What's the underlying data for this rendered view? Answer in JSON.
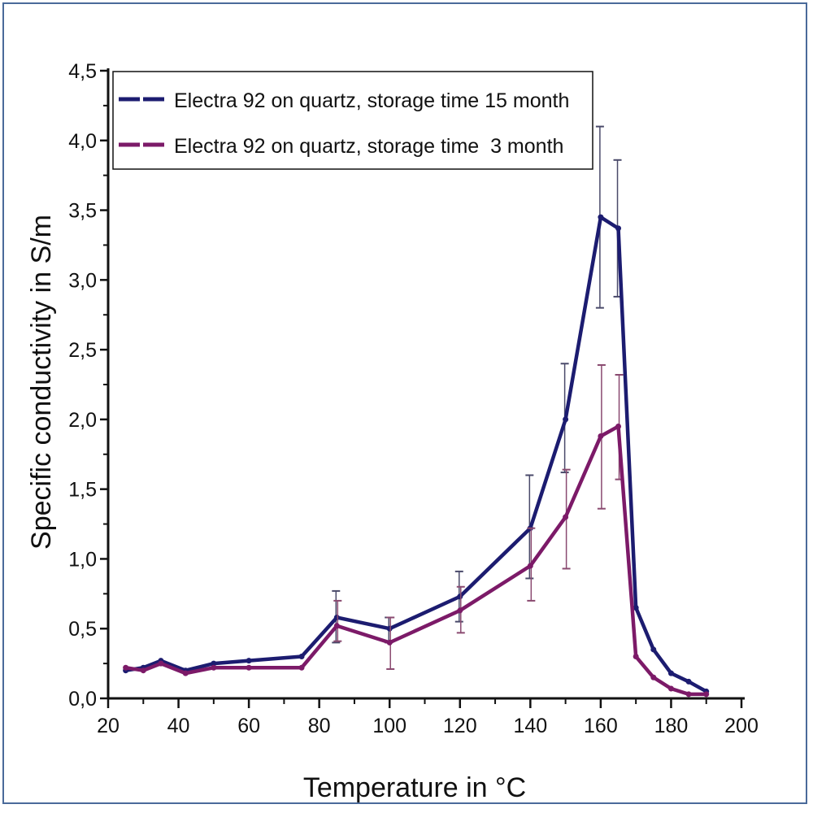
{
  "chart_data": {
    "type": "line",
    "xlabel": "Temperature in °C",
    "ylabel": "Specific conductivity in S/m",
    "xlim": [
      20,
      200
    ],
    "ylim": [
      0,
      4.5
    ],
    "xticks": [
      "20",
      "40",
      "60",
      "80",
      "100",
      "120",
      "140",
      "160",
      "180",
      "200"
    ],
    "yticks": [
      "0,0",
      "0,5",
      "1,0",
      "1,5",
      "2,0",
      "2,5",
      "3,0",
      "3,5",
      "4,0",
      "4,5"
    ],
    "legend_position": "top-left",
    "grid": false,
    "series": [
      {
        "name": "Electra 92 on quartz, storage time 15 month",
        "color": "#1c1c70",
        "x": [
          25,
          30,
          35,
          42,
          50,
          60,
          75,
          85,
          100,
          120,
          140,
          150,
          160,
          165,
          170,
          175,
          180,
          185,
          190
        ],
        "y": [
          0.2,
          0.22,
          0.27,
          0.2,
          0.25,
          0.27,
          0.3,
          0.58,
          0.5,
          0.73,
          1.22,
          2.0,
          3.45,
          3.37,
          0.65,
          0.35,
          0.18,
          0.12,
          0.05
        ],
        "error_bars": [
          {
            "x": 85,
            "low": 0.4,
            "high": 0.77
          },
          {
            "x": 100,
            "low": 0.4,
            "high": 0.58
          },
          {
            "x": 120,
            "low": 0.55,
            "high": 0.91
          },
          {
            "x": 140,
            "low": 0.86,
            "high": 1.6
          },
          {
            "x": 150,
            "low": 1.62,
            "high": 2.4
          },
          {
            "x": 160,
            "low": 2.8,
            "high": 4.1
          },
          {
            "x": 165,
            "low": 2.88,
            "high": 3.86
          }
        ]
      },
      {
        "name": "Electra 92 on quartz, storage time  3 month",
        "color": "#7c1a68",
        "x": [
          25,
          30,
          35,
          42,
          50,
          60,
          75,
          85,
          100,
          120,
          140,
          150,
          160,
          165,
          170,
          175,
          180,
          185,
          190
        ],
        "y": [
          0.22,
          0.2,
          0.25,
          0.18,
          0.22,
          0.22,
          0.22,
          0.52,
          0.4,
          0.63,
          0.95,
          1.3,
          1.88,
          1.95,
          0.3,
          0.15,
          0.07,
          0.03,
          0.03
        ],
        "error_bars": [
          {
            "x": 85,
            "low": 0.41,
            "high": 0.7
          },
          {
            "x": 100,
            "low": 0.21,
            "high": 0.58
          },
          {
            "x": 120,
            "low": 0.47,
            "high": 0.8
          },
          {
            "x": 140,
            "low": 0.7,
            "high": 1.22
          },
          {
            "x": 150,
            "low": 0.93,
            "high": 1.64
          },
          {
            "x": 160,
            "low": 1.36,
            "high": 2.39
          },
          {
            "x": 165,
            "low": 1.57,
            "high": 2.32
          }
        ]
      }
    ]
  }
}
